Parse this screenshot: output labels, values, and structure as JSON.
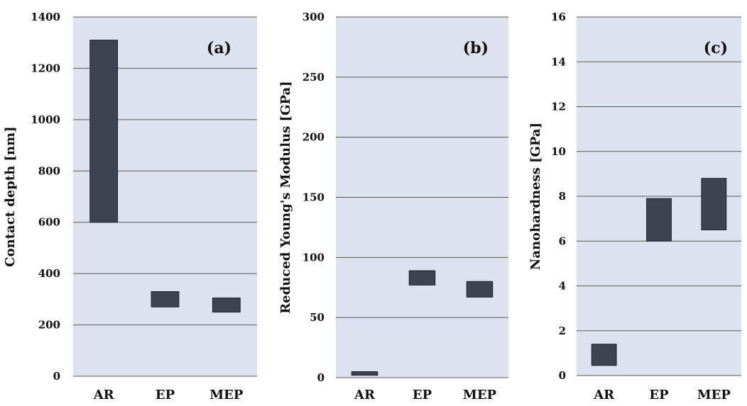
{
  "colors": {
    "plot_background": "#dce3ef",
    "gridline": "#5a5a5a",
    "bar_fill": "#3b4450",
    "bar_stroke": "#1c2128",
    "text": "#111111"
  },
  "chart_data": [
    {
      "type": "bar",
      "bar_style": "floating-range",
      "panel_label": "(a)",
      "xlabel": "",
      "ylabel": "Contact depth [nm]",
      "categories": [
        "AR",
        "EP",
        "MEP"
      ],
      "ranges": [
        [
          600,
          1310
        ],
        [
          270,
          330
        ],
        [
          250,
          305
        ]
      ],
      "ylim": [
        0,
        1400
      ],
      "yticks": [
        0,
        200,
        400,
        600,
        800,
        1000,
        1200,
        1400
      ],
      "grid": true,
      "legend": "none"
    },
    {
      "type": "bar",
      "bar_style": "floating-range",
      "panel_label": "(b)",
      "xlabel": "",
      "ylabel": "Reduced Young's Modulus [GPa]",
      "categories": [
        "AR",
        "EP",
        "MEP"
      ],
      "ranges": [
        [
          2,
          5
        ],
        [
          77,
          89
        ],
        [
          67,
          80
        ]
      ],
      "ylim": [
        0,
        300
      ],
      "yticks": [
        0,
        50,
        100,
        150,
        200,
        250,
        300
      ],
      "grid": true,
      "legend": "none"
    },
    {
      "type": "bar",
      "bar_style": "floating-range",
      "panel_label": "(c)",
      "xlabel": "",
      "ylabel": "Nanohardness [GPa]",
      "categories": [
        "AR",
        "EP",
        "MEP"
      ],
      "ranges": [
        [
          0.45,
          1.4
        ],
        [
          6.0,
          7.9
        ],
        [
          6.5,
          8.8
        ]
      ],
      "ylim": [
        0,
        16
      ],
      "yticks": [
        0,
        2,
        4,
        6,
        8,
        10,
        12,
        14,
        16
      ],
      "grid": true,
      "legend": "none"
    }
  ]
}
